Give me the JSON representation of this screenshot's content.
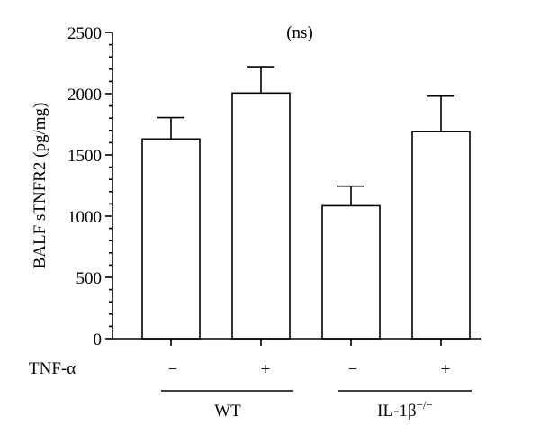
{
  "chart_data": {
    "type": "bar",
    "title": "",
    "ylabel": "BALF sTNFR2 (pg/mg)",
    "xlabel": "",
    "ylim": [
      0,
      2500
    ],
    "yticks": [
      0,
      500,
      1000,
      1500,
      2000,
      2500
    ],
    "minor_tick_step": 100,
    "grid": false,
    "annotation": "(ns)",
    "row_label": "TNF-α",
    "bars": [
      {
        "tnf": "−",
        "group": "WT",
        "value": 1630,
        "error": 175
      },
      {
        "tnf": "+",
        "group": "WT",
        "value": 2005,
        "error": 215
      },
      {
        "tnf": "−",
        "group": "IL-1β−/−",
        "value": 1085,
        "error": 160
      },
      {
        "tnf": "+",
        "group": "IL-1β−/−",
        "value": 1690,
        "error": 290
      }
    ],
    "groups": [
      {
        "base": "WT",
        "sup": ""
      },
      {
        "base": "IL-1β",
        "sup": "−/−"
      }
    ]
  }
}
